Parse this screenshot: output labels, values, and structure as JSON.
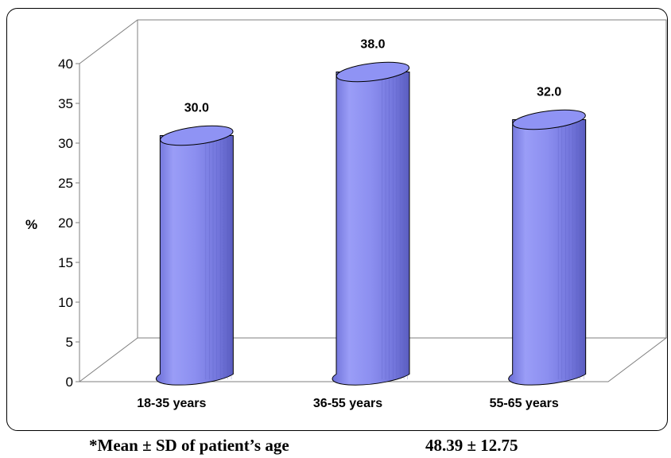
{
  "chart_data": {
    "type": "bar",
    "style": "3d-cylinder",
    "categories": [
      "18-35 years",
      "36-55 years",
      "55-65 years"
    ],
    "values": [
      30.0,
      38.0,
      32.0
    ],
    "data_labels": [
      "30.0",
      "38.0",
      "32.0"
    ],
    "ylabel": "%",
    "xlabel": "",
    "ylim": [
      0,
      40
    ],
    "yticks": [
      0,
      5,
      10,
      15,
      20,
      25,
      30,
      35,
      40
    ],
    "grid": false,
    "legend": "none",
    "bar_color": "#8c8ff0",
    "bar_top_color": "#8f93f4"
  },
  "footnote": {
    "label": "*Mean ± SD of patient’s age",
    "value": "48.39 ± 12.75"
  }
}
